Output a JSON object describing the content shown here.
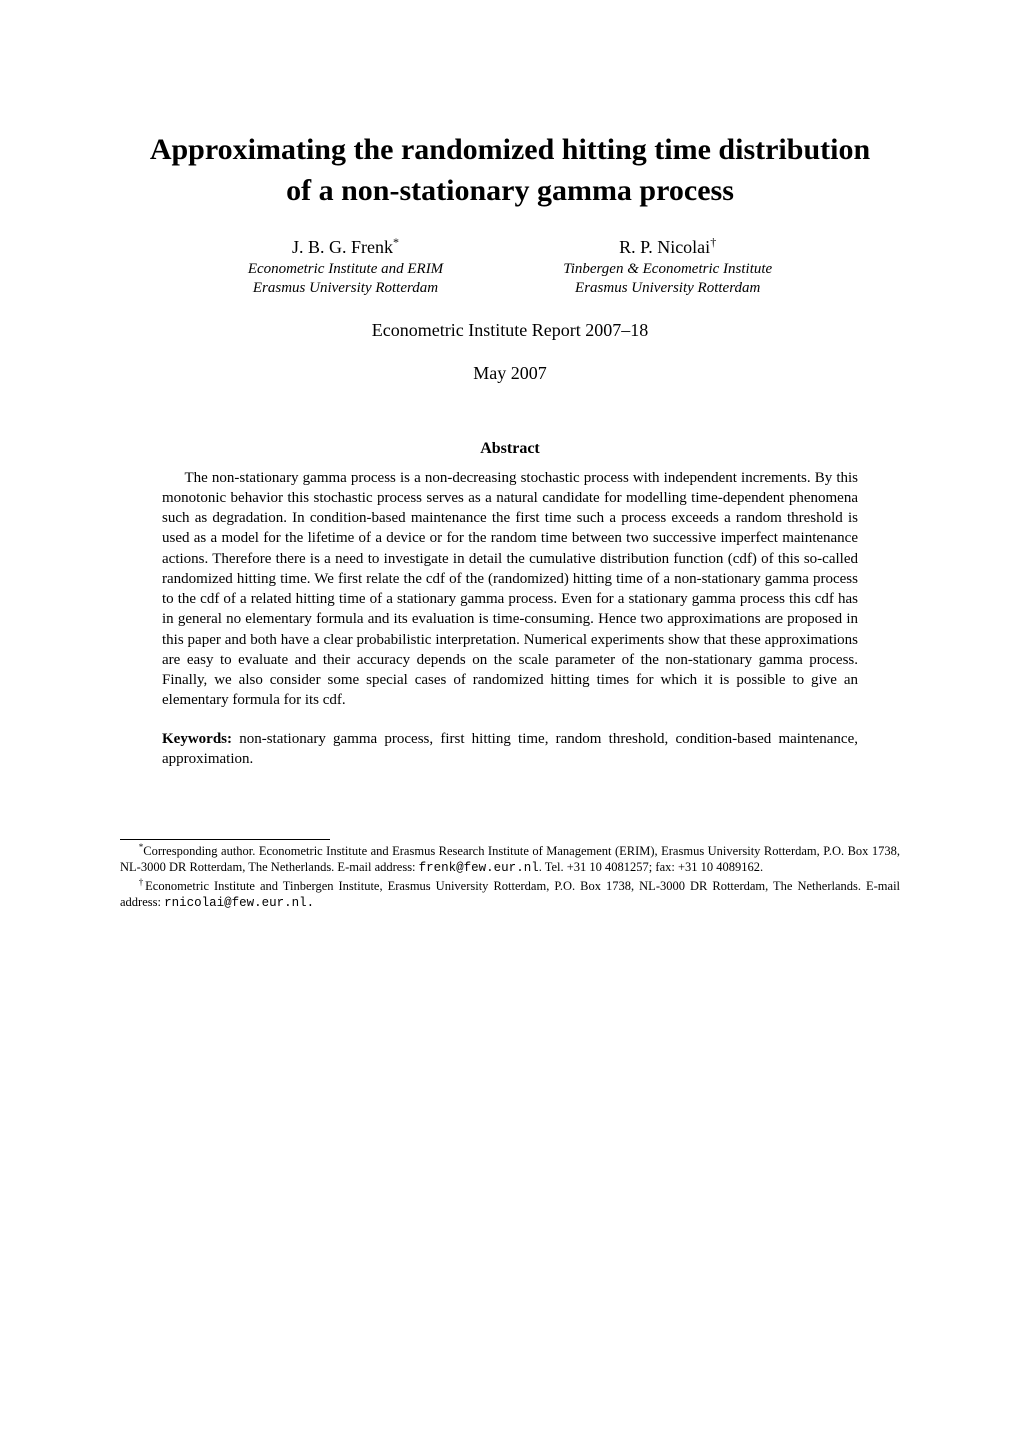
{
  "title_line1": "Approximating the randomized hitting time distribution",
  "title_line2": "of a non-stationary gamma process",
  "authors": [
    {
      "name": "J. B. G. Frenk",
      "sup": "*",
      "aff_line1": "Econometric Institute and ERIM",
      "aff_line2": "Erasmus University Rotterdam"
    },
    {
      "name": "R. P. Nicolai",
      "sup": "†",
      "aff_line1": "Tinbergen & Econometric Institute",
      "aff_line2": "Erasmus University Rotterdam"
    }
  ],
  "report": "Econometric Institute Report 2007–18",
  "date": "May 2007",
  "abstract_heading": "Abstract",
  "abstract_body": "The non-stationary gamma process is a non-decreasing stochastic process with independent increments. By this monotonic behavior this stochastic process serves as a natural candidate for modelling time-dependent phenomena such as degradation. In condition-based maintenance the first time such a process exceeds a random threshold is used as a model for the lifetime of a device or for the random time between two successive imperfect maintenance actions. Therefore there is a need to investigate in detail the cumulative distribution function (cdf) of this so-called randomized hitting time. We first relate the cdf of the (randomized) hitting time of a non-stationary gamma process to the cdf of a related hitting time of a stationary gamma process. Even for a stationary gamma process this cdf has in general no elementary formula and its evaluation is time-consuming. Hence two approximations are proposed in this paper and both have a clear probabilistic interpretation. Numerical experiments show that these approximations are easy to evaluate and their accuracy depends on the scale parameter of the non-stationary gamma process. Finally, we also consider some special cases of randomized hitting times for which it is possible to give an elementary formula for its cdf.",
  "keywords_label": "Keywords:",
  "keywords_text": " non-stationary gamma process, first hitting time, random threshold, condition-based maintenance, approximation.",
  "footnotes": [
    {
      "sup": "*",
      "pre": "Corresponding author.    Econometric Institute and Erasmus Research Institute of Management (ERIM), Erasmus University Rotterdam, P.O. Box 1738, NL-3000 DR Rotterdam, The Netherlands.   E-mail address: ",
      "tt": "frenk@few.eur.nl",
      "post": ". Tel. +31 10 4081257; fax: +31 10 4089162."
    },
    {
      "sup": "†",
      "pre": "Econometric Institute and Tinbergen Institute, Erasmus University Rotterdam, P.O. Box 1738, NL-3000 DR Rotterdam, The Netherlands. E-mail address: ",
      "tt": "rnicolai@few.eur.nl.",
      "post": ""
    }
  ]
}
